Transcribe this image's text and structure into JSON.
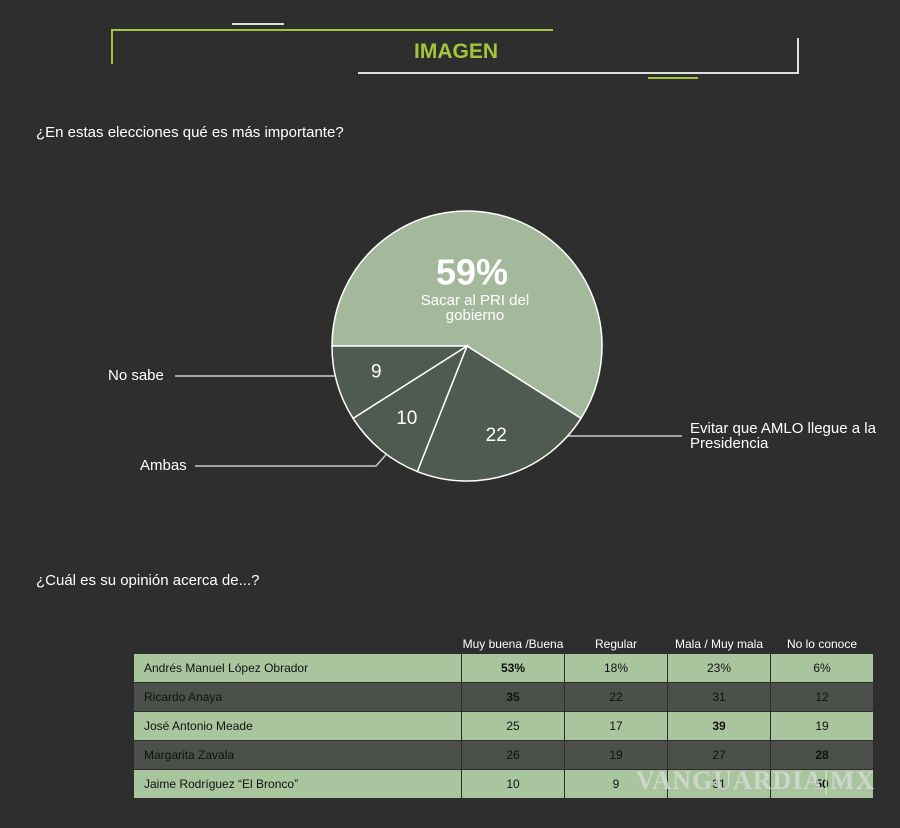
{
  "header": {
    "title": "IMAGEN"
  },
  "chart_data": {
    "type": "pie",
    "title": "¿En estas elecciones qué es más importante?",
    "categories": [
      "Sacar al PRI del gobierno",
      "Evitar que AMLO llegue a la Presidencia",
      "Ambas",
      "No sabe"
    ],
    "values": [
      59,
      22,
      10,
      9
    ],
    "value_labels": [
      "59%",
      "22",
      "10",
      "9"
    ],
    "colors": [
      "#a4b99c",
      "#4f5a51",
      "#4f5a51",
      "#4f5a51"
    ]
  },
  "table": {
    "title": "¿Cuál es su opinión acerca de...?",
    "columns": [
      "Muy buena /Buena",
      "Regular",
      "Mala / Muy mala",
      "No lo conoce"
    ],
    "rows": [
      {
        "name": "Andrés Manuel López Obrador",
        "cells": [
          "53%",
          "18%",
          "23%",
          "6%"
        ],
        "bold_column": 0
      },
      {
        "name": "Ricardo Anaya",
        "cells": [
          "35",
          "22",
          "31",
          "12"
        ],
        "bold_column": 0
      },
      {
        "name": "José Antonio Meade",
        "cells": [
          "25",
          "17",
          "39",
          "19"
        ],
        "bold_column": 2
      },
      {
        "name": "Margarita Zavala",
        "cells": [
          "26",
          "19",
          "27",
          "28"
        ],
        "bold_column": 3
      },
      {
        "name": "Jaime Rodríguez “El Bronco”",
        "cells": [
          "10",
          "9",
          "31",
          "50"
        ],
        "bold_column": 3
      }
    ]
  },
  "watermark": "VANGUARDIA|MX"
}
